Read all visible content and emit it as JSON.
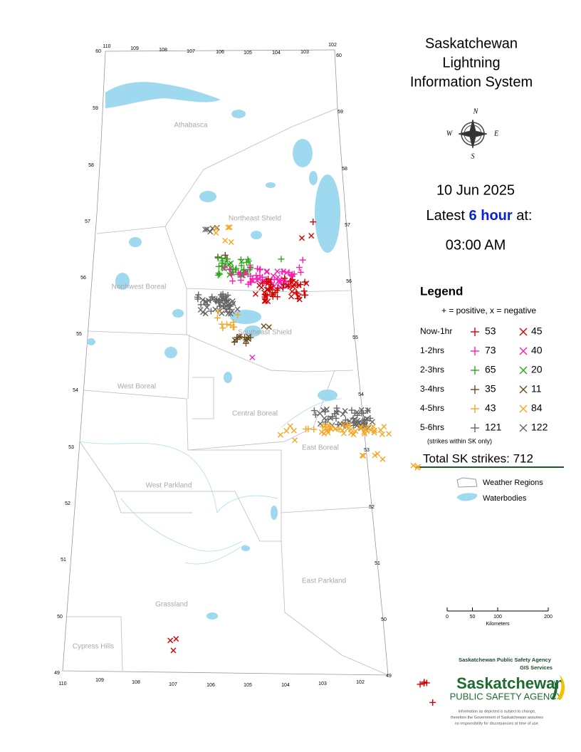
{
  "header": {
    "title_lines": [
      "Saskatchewan",
      "Lightning",
      "Information System"
    ],
    "date": "10 Jun 2025",
    "latest_prefix": "Latest",
    "latest_period": "6 hour",
    "latest_suffix": "at:",
    "time": "03:00 AM"
  },
  "compass": {
    "n": "N",
    "w": "W",
    "e": "E",
    "s": "S"
  },
  "legend": {
    "title": "Legend",
    "key": "+ = positive, x = negative",
    "rows": [
      {
        "period": "Now-1hr",
        "color": "#d40000",
        "positive": 53,
        "negative": 45
      },
      {
        "period": "1-2hrs",
        "color": "#ff1ab0",
        "positive": 73,
        "negative": 40
      },
      {
        "period": "2-3hrs",
        "color": "#2ea81e",
        "positive": 65,
        "negative": 20
      },
      {
        "period": "3-4hrs",
        "color": "#6b4a1e",
        "positive": 35,
        "negative": 11
      },
      {
        "period": "4-5hrs",
        "color": "#f5a623",
        "positive": 43,
        "negative": 84
      },
      {
        "period": "5-6hrs",
        "color": "#666666",
        "positive": 121,
        "negative": 122
      }
    ],
    "note": "(strikes within SK only)",
    "total": "Total SK strikes: 712",
    "weather_regions": "Weather Regions",
    "waterbodies": "Waterbodies"
  },
  "map": {
    "regions": [
      "Athabasca",
      "Northeast Shield",
      "Northwest Boreal",
      "Southeast Shield",
      "West Boreal",
      "Central Boreal",
      "East Boreal",
      "West Parkland",
      "East Parkland",
      "Grassland",
      "Cypress Hills"
    ],
    "lon_top": [
      110,
      109,
      108,
      107,
      106,
      105,
      104,
      103,
      102
    ],
    "lon_bottom": [
      110,
      109,
      108,
      107,
      106,
      105,
      104,
      103,
      102
    ],
    "lat_left": [
      60,
      59,
      58,
      57,
      56,
      55,
      54,
      53,
      52,
      51,
      50,
      49
    ],
    "lat_right": [
      60,
      59,
      58,
      57,
      56,
      55,
      54,
      53,
      52,
      51,
      50,
      49
    ]
  },
  "scale": {
    "ticks": [
      0,
      50,
      100,
      200
    ],
    "unit": "Kilometers"
  },
  "agency": {
    "name": "Saskatchewan Public Safety Agency",
    "unit": "GIS Services",
    "logo_top": "Saskatchewan",
    "logo_bottom": "PUBLIC SAFETY AGENCY",
    "disclaimer": [
      "Information as depicted is subject to change,",
      "therefore the Government of Saskatchewan assumes",
      "no responsibility for discrepancies at time of use."
    ]
  }
}
